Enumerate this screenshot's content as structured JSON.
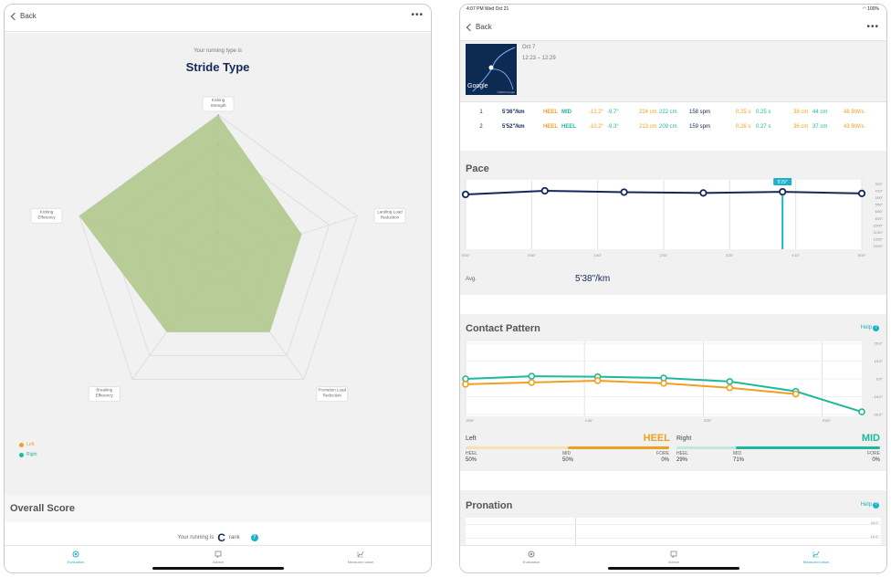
{
  "left": {
    "back_label": "Back",
    "more_label": "•••",
    "subtitle": "Your running type is",
    "title": "Stride Type",
    "radar": {
      "axes": [
        {
          "label": "Kicking\nStrength"
        },
        {
          "label": "Landing Load\nReduction"
        },
        {
          "label": "Pronation Load\nReduction"
        },
        {
          "label": "Breaking\nEfficiency"
        },
        {
          "label": "Kicking\nEfficiency"
        }
      ],
      "ranks": [
        "A",
        "B",
        "C",
        "D",
        "E"
      ],
      "series": [
        {
          "name": "Left",
          "color": "#f0a020",
          "values": [
            5.0,
            3.0,
            3.0,
            3.0,
            5.0
          ]
        },
        {
          "name": "Right",
          "color": "#1fb89a",
          "values": [
            5.0,
            3.0,
            3.0,
            3.0,
            5.0
          ]
        }
      ]
    },
    "legend": [
      {
        "label": "Left",
        "color": "#f0a020"
      },
      {
        "label": "Right",
        "color": "#1fb89a"
      }
    ],
    "overall_title": "Overall Score",
    "rank_prefix": "Your running is",
    "rank_value": "C",
    "rank_suffix": "rank",
    "rank_help": "?",
    "tabs": [
      {
        "label": "Evaluation",
        "icon": "evaluation-icon",
        "active": true
      },
      {
        "label": "Advice",
        "icon": "advice-icon",
        "active": false
      },
      {
        "label": "Measured value",
        "icon": "measured-value-icon",
        "active": false
      }
    ]
  },
  "right": {
    "status_time": "4:07 PM  Wed Oct 21",
    "status_battery": "100%",
    "back_label": "Back",
    "more_label": "•••",
    "map_brand": "Google",
    "map_copyright": "©2020 Google",
    "date": "Oct 7",
    "time_range": "12:23 – 12:29",
    "laps": [
      {
        "no": "1",
        "pace": "5'36\"/km",
        "l_strike": "HEEL",
        "r_strike": "MID",
        "l_pron": "-12.2°",
        "r_pron": "-9.7°",
        "l_stride": "224 cm",
        "r_stride": "222 cm",
        "cadence": "158 spm",
        "l_contact": "0.25 s",
        "r_contact": "0.25 s",
        "l_swing": "38 cm",
        "r_swing": "44 cm",
        "impact": "48 BW/s"
      },
      {
        "no": "2",
        "pace": "5'52\"/km",
        "l_strike": "HEEL",
        "r_strike": "HEEL",
        "l_pron": "-10.2°",
        "r_pron": "-9.3°",
        "l_stride": "213 cm",
        "r_stride": "209 cm",
        "cadence": "159 spm",
        "l_contact": "0.26 s",
        "r_contact": "0.27 s",
        "l_swing": "36 cm",
        "r_swing": "37 cm",
        "impact": "43 BW/s"
      }
    ],
    "pace": {
      "title": "Pace",
      "avg_label": "Avg.",
      "avg_value": "5'38\"/km",
      "tooltip": "5'29\"",
      "chart_data": {
        "type": "line",
        "x_ticks": [
          "0'00\"",
          "0'50\"",
          "1'40\"",
          "2'30\"",
          "3'20\"",
          "4'10\"",
          "5'00\""
        ],
        "y_ticks": [
          "3'20\"",
          "4'10\"",
          "5'00\"",
          "5'50\"",
          "6'40\"",
          "8'20\"",
          "10'00\"",
          "11'40\"",
          "13'20\"",
          "15'00\""
        ],
        "series": [
          {
            "color": "#14285a",
            "values": [
              5.64,
              5.42,
              5.5,
              5.55,
              5.48,
              5.58
            ]
          }
        ],
        "highlight_index": 4
      }
    },
    "contact": {
      "title": "Contact Pattern",
      "help_label": "Help",
      "chart_data": {
        "type": "line",
        "x_ticks": [
          "0'00\"",
          "1'40\"",
          "3'20\"",
          "5'00\""
        ],
        "y_ticks": [
          "20.0°",
          "10.0°",
          "0.0°",
          "-10.0°",
          "-20.0°"
        ],
        "series": [
          {
            "name": "Right",
            "color": "#1fb89a",
            "values": [
              0.0,
              1.5,
              1.2,
              0.5,
              -1.5,
              -7.0,
              -18.5
            ]
          },
          {
            "name": "Left",
            "color": "#f0a020",
            "values": [
              -3.0,
              -2.0,
              -1.0,
              -2.5,
              -5.0,
              -8.5
            ]
          }
        ]
      },
      "left_label": "Left",
      "left_value": "HEEL",
      "right_label": "Right",
      "right_value": "MID",
      "left_cols": [
        {
          "name": "HEEL",
          "pct": "50%"
        },
        {
          "name": "MID",
          "pct": "50%"
        },
        {
          "name": "FORE",
          "pct": "0%"
        }
      ],
      "right_cols": [
        {
          "name": "HEEL",
          "pct": "29%"
        },
        {
          "name": "MID",
          "pct": "71%"
        },
        {
          "name": "FORE",
          "pct": "0%"
        }
      ],
      "left_split": {
        "heel": 0.5,
        "mid": 0.5,
        "fore": 0.0
      },
      "right_split": {
        "heel": 0.29,
        "mid": 0.71,
        "fore": 0.0
      }
    },
    "pronation": {
      "title": "Pronation",
      "help_label": "Help",
      "y_ticks": [
        "20.0°",
        "10.0°"
      ]
    },
    "tabs": [
      {
        "label": "Evaluation",
        "icon": "evaluation-icon",
        "active": false
      },
      {
        "label": "Advice",
        "icon": "advice-icon",
        "active": false
      },
      {
        "label": "Measured value",
        "icon": "measured-value-icon",
        "active": true
      }
    ]
  },
  "colors": {
    "accent": "#1bb1c9",
    "navy": "#14285a",
    "left": "#f0a020",
    "right": "#1fb89a"
  }
}
